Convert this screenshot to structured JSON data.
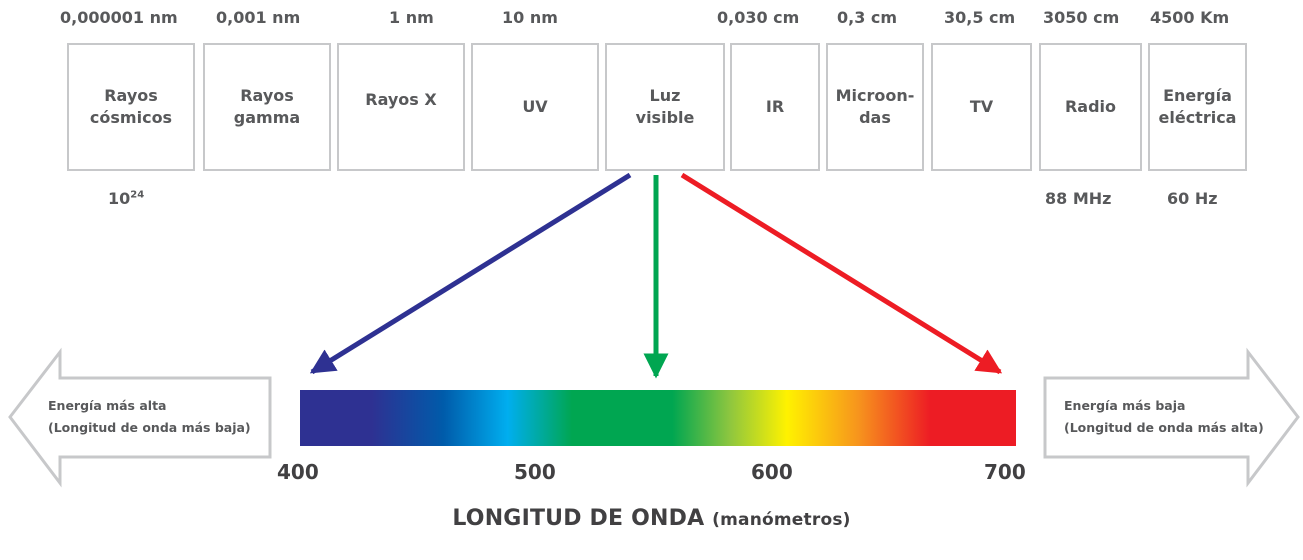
{
  "wavelength_labels": [
    "0,000001 nm",
    "0,001 nm",
    "1 nm",
    "10 nm",
    "0,030 cm",
    "0,3 cm",
    "30,5 cm",
    "3050 cm",
    "4500 Km"
  ],
  "bands": [
    {
      "label": "Rayos\ncósmicos"
    },
    {
      "label": "Rayos\ngamma"
    },
    {
      "label": "Rayos X"
    },
    {
      "label": "UV"
    },
    {
      "label": "Luz\nvisible"
    },
    {
      "label": "IR"
    },
    {
      "label": "Microon-\ndas"
    },
    {
      "label": "TV"
    },
    {
      "label": "Radio"
    },
    {
      "label": "Energía\neléctrica"
    }
  ],
  "frequency_labels": {
    "cosmic_base": "10",
    "cosmic_exp": "24",
    "radio": "88 MHz",
    "electric": "60 Hz"
  },
  "left_arrow": {
    "line1": "Energía más alta",
    "line2": "(Longitud de onda más baja)"
  },
  "right_arrow": {
    "line1": "Energía más baja",
    "line2": "(Longitud de onda más alta)"
  },
  "axis_ticks": [
    "400",
    "500",
    "600",
    "700"
  ],
  "axis_title": {
    "main": "LONGITUD DE ONDA",
    "unit": "(manómetros)"
  },
  "colors": {
    "box_border": "#c7c8ca",
    "text": "#58595b",
    "arrow_blue": "#2e3192",
    "arrow_green": "#00a651",
    "arrow_red": "#ed1c24",
    "side_arrow": "#c7c8ca"
  },
  "spectrum_colors": [
    "#2e3192",
    "#2e3192",
    "#005baa",
    "#00aeef",
    "#00a651",
    "#00a651",
    "#8dc63f",
    "#fff200",
    "#f7941d",
    "#ed1c24",
    "#ed1c24"
  ]
}
